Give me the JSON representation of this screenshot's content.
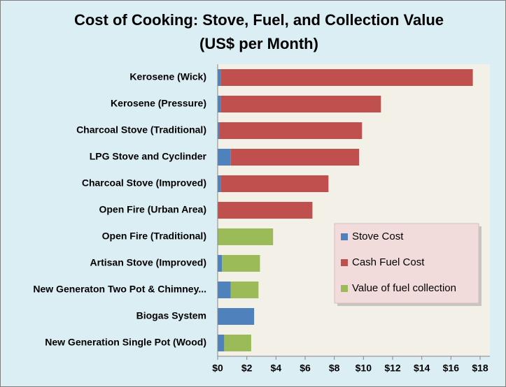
{
  "chart_data": {
    "type": "stacked_barh",
    "title": "Cost of Cooking:  Stove, Fuel, and Collection Value",
    "subtitle": "(US$ per Month)",
    "categories": [
      "Kerosene (Wick)",
      "Kerosene (Pressure)",
      "Charcoal Stove (Traditional)",
      "LPG Stove and Cyclinder",
      "Charcoal Stove (Improved)",
      "Open Fire (Urban Area)",
      "Open Fire (Traditional)",
      "Artisan Stove (Improved)",
      "New Generaton Two Pot & Chimney...",
      "Biogas System",
      "New Generation Single Pot (Wood)"
    ],
    "series": [
      {
        "name": "Stove Cost",
        "color": "#4f81bd",
        "values": [
          0.2,
          0.2,
          0.1,
          0.9,
          0.2,
          0,
          0,
          0.3,
          0.9,
          2.5,
          0.45
        ]
      },
      {
        "name": "Cash Fuel Cost",
        "color": "#c0504d",
        "values": [
          17.3,
          11.0,
          9.8,
          8.8,
          7.4,
          6.5,
          0,
          0,
          0,
          0,
          0
        ]
      },
      {
        "name": "Value of fuel collection",
        "color": "#9bbb59",
        "values": [
          0,
          0,
          0,
          0,
          0,
          0,
          3.8,
          2.6,
          1.9,
          0,
          1.85
        ]
      }
    ],
    "xlim": [
      0,
      18
    ],
    "xticks": [
      {
        "value": 0,
        "label": "$0"
      },
      {
        "value": 2,
        "label": "$2"
      },
      {
        "value": 4,
        "label": "$4"
      },
      {
        "value": 6,
        "label": "$6"
      },
      {
        "value": 8,
        "label": "$8"
      },
      {
        "value": 10,
        "label": "$10"
      },
      {
        "value": 12,
        "label": "$12"
      },
      {
        "value": 14,
        "label": "$14"
      },
      {
        "value": 16,
        "label": "$16"
      },
      {
        "value": 18,
        "label": "$18"
      }
    ],
    "grid": false,
    "legend": "right"
  }
}
